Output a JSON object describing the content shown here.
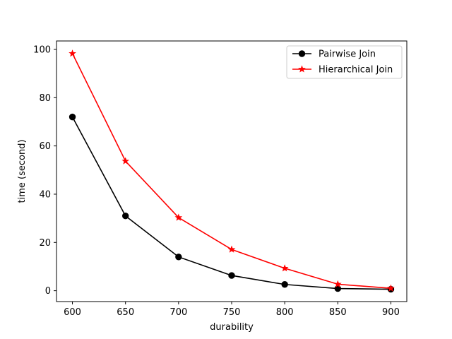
{
  "chart_data": {
    "type": "line",
    "title": "",
    "xlabel": "durability",
    "ylabel": "time (second)",
    "x": [
      600,
      650,
      700,
      750,
      800,
      850,
      900
    ],
    "xlim": [
      585,
      915
    ],
    "ylim": [
      -4.5,
      103.5
    ],
    "xticks": [
      600,
      650,
      700,
      750,
      800,
      850,
      900
    ],
    "yticks": [
      0,
      20,
      40,
      60,
      80,
      100
    ],
    "grid": false,
    "legend_position": "top-right",
    "series": [
      {
        "name": "Pairwise Join",
        "color": "#000000",
        "marker": "circle",
        "values": [
          72,
          31,
          14,
          6.3,
          2.6,
          0.9,
          0.6
        ]
      },
      {
        "name": "Hierarchical Join",
        "color": "#ff0000",
        "marker": "star",
        "values": [
          98.3,
          53.7,
          30.3,
          17.1,
          9.3,
          2.7,
          1.0
        ]
      }
    ]
  }
}
